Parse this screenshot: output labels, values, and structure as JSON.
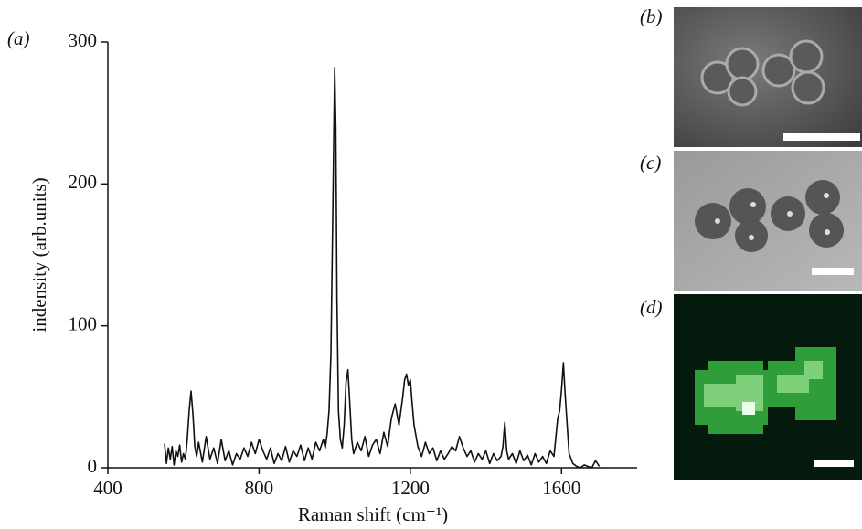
{
  "chart_data": {
    "type": "line",
    "x_label": "Raman shift (cm⁻¹)",
    "y_label": "indensity (arb.units)",
    "panel_labels": [
      "(a)",
      "(b)",
      "(c)",
      "(d)"
    ],
    "color": "#111111",
    "x": [
      550,
      555,
      560,
      565,
      570,
      575,
      580,
      585,
      590,
      595,
      600,
      605,
      610,
      615,
      620,
      625,
      630,
      635,
      640,
      650,
      660,
      670,
      680,
      690,
      700,
      710,
      720,
      730,
      740,
      750,
      760,
      770,
      780,
      790,
      800,
      810,
      820,
      830,
      840,
      850,
      860,
      870,
      880,
      890,
      900,
      910,
      920,
      930,
      940,
      950,
      960,
      970,
      975,
      980,
      985,
      990,
      995,
      1000,
      1003,
      1006,
      1010,
      1015,
      1020,
      1025,
      1030,
      1035,
      1040,
      1045,
      1050,
      1060,
      1070,
      1080,
      1090,
      1100,
      1110,
      1120,
      1130,
      1140,
      1150,
      1160,
      1170,
      1180,
      1185,
      1190,
      1195,
      1200,
      1205,
      1210,
      1220,
      1230,
      1240,
      1250,
      1260,
      1270,
      1280,
      1290,
      1300,
      1310,
      1320,
      1330,
      1340,
      1350,
      1360,
      1370,
      1380,
      1390,
      1400,
      1410,
      1420,
      1430,
      1440,
      1445,
      1450,
      1455,
      1460,
      1470,
      1480,
      1490,
      1500,
      1510,
      1520,
      1530,
      1540,
      1550,
      1560,
      1570,
      1580,
      1590,
      1595,
      1600,
      1605,
      1610,
      1615,
      1620,
      1630,
      1640,
      1650,
      1660,
      1670,
      1680,
      1690,
      1700
    ],
    "values": [
      17,
      3,
      14,
      6,
      15,
      2,
      12,
      8,
      16,
      4,
      10,
      6,
      20,
      40,
      54,
      38,
      15,
      8,
      18,
      4,
      22,
      6,
      14,
      3,
      20,
      5,
      12,
      2,
      10,
      6,
      14,
      8,
      18,
      10,
      20,
      12,
      6,
      14,
      3,
      10,
      5,
      15,
      4,
      12,
      8,
      16,
      5,
      14,
      6,
      18,
      12,
      20,
      14,
      24,
      40,
      80,
      180,
      282,
      240,
      120,
      40,
      20,
      14,
      30,
      60,
      69,
      45,
      20,
      10,
      18,
      12,
      22,
      8,
      16,
      20,
      10,
      25,
      15,
      35,
      45,
      30,
      50,
      62,
      66,
      58,
      62,
      45,
      30,
      15,
      8,
      18,
      10,
      14,
      5,
      12,
      6,
      10,
      15,
      12,
      22,
      14,
      8,
      12,
      4,
      10,
      6,
      12,
      3,
      10,
      5,
      8,
      15,
      32,
      12,
      6,
      10,
      3,
      12,
      5,
      9,
      2,
      10,
      4,
      8,
      3,
      12,
      8,
      35,
      40,
      55,
      74,
      50,
      30,
      10,
      3,
      1,
      0,
      2,
      1,
      0,
      5,
      1
    ],
    "xlim": [
      400,
      1800
    ],
    "ylim": [
      0,
      300
    ],
    "xticks": [
      400,
      800,
      1200,
      1600
    ],
    "yticks": [
      0,
      100,
      200,
      300
    ]
  }
}
